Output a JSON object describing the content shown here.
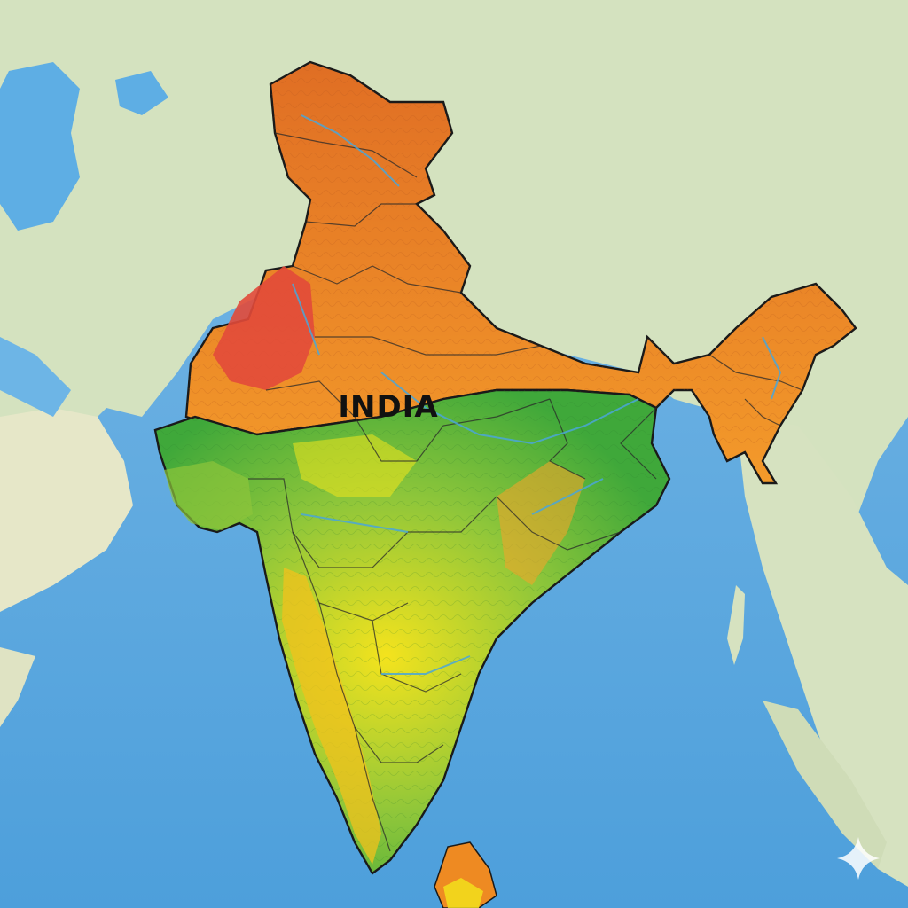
{
  "map": {
    "country_label": "INDIA",
    "colors": {
      "ocean_deep": "#4ea3dd",
      "ocean_shallow": "#8cc8ee",
      "land_neighbor": "#d4e2bf",
      "lowland_green": "#3fa83a",
      "plateau_yellow": "#f2e51c",
      "upland_orange": "#ee8a22",
      "highland_red": "#e24a3a",
      "mountain_orange": "#e77a2b",
      "river": "#4aa6d8"
    },
    "watermark_icon": "sparkle-icon"
  }
}
